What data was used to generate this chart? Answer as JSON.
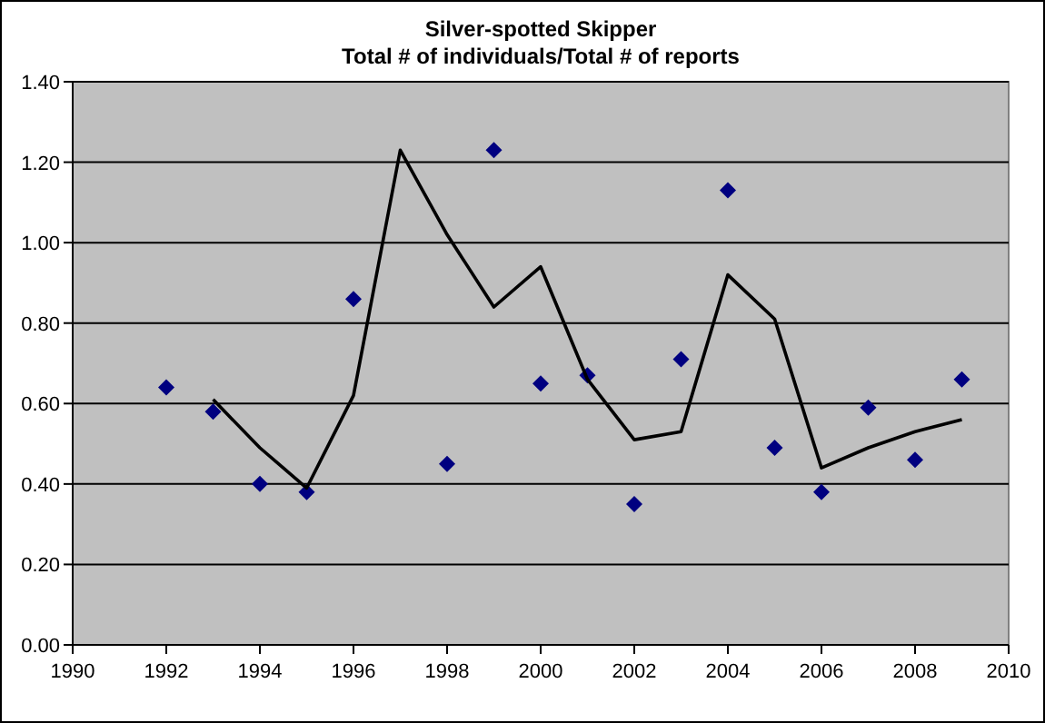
{
  "chart_data": {
    "type": "scatter",
    "title": "Silver-spotted Skipper",
    "subtitle": "Total # of individuals/Total # of reports",
    "x": [
      1992,
      1993,
      1994,
      1995,
      1996,
      1998,
      1999,
      2000,
      2001,
      2002,
      2003,
      2004,
      2005,
      2006,
      2007,
      2008,
      2009
    ],
    "series": [
      {
        "color": "#000080",
        "marker": "diamond",
        "values": [
          0.64,
          0.58,
          0.4,
          0.38,
          0.86,
          0.45,
          1.23,
          0.65,
          0.67,
          0.35,
          0.71,
          1.13,
          0.49,
          0.38,
          0.59,
          0.46,
          0.66
        ]
      },
      {
        "type": "line",
        "color": "#000000",
        "marker": "none",
        "x": [
          1993,
          1994,
          1995,
          1996,
          1997,
          1998,
          1999,
          2000,
          2001,
          2002,
          2003,
          2004,
          2005,
          2006,
          2007,
          2008,
          2009
        ],
        "values": [
          0.61,
          0.49,
          0.39,
          0.62,
          1.23,
          1.02,
          0.84,
          0.94,
          0.66,
          0.51,
          0.53,
          0.92,
          0.81,
          0.44,
          0.49,
          0.53,
          0.56
        ]
      }
    ],
    "xlim": [
      1990,
      2010
    ],
    "xticks": [
      1990,
      1992,
      1994,
      1996,
      1998,
      2000,
      2002,
      2004,
      2006,
      2008,
      2010
    ],
    "ylim": [
      0,
      1.4
    ],
    "yticks": [
      {
        "value": 0,
        "label": "0.00"
      },
      {
        "value": 0.2,
        "label": "0.20"
      },
      {
        "value": 0.4,
        "label": "0.40"
      },
      {
        "value": 0.6,
        "label": "0.60"
      },
      {
        "value": 0.8,
        "label": "0.80"
      },
      {
        "value": 1.0,
        "label": "1.00"
      },
      {
        "value": 1.2,
        "label": "1.20"
      },
      {
        "value": 1.4,
        "label": "1.40"
      }
    ],
    "grid": "y"
  }
}
